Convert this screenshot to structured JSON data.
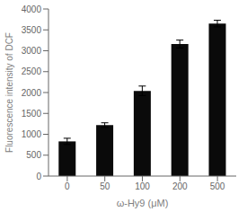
{
  "chart_data": {
    "type": "bar",
    "categories": [
      "0",
      "50",
      "100",
      "200",
      "500"
    ],
    "values": [
      830,
      1220,
      2040,
      3160,
      3650
    ],
    "errors": [
      75,
      55,
      115,
      95,
      80
    ],
    "color": "#0a0a0a",
    "xlabel": "ω-Hy9 (μM)",
    "ylabel": "Fluorescence  intensity  of DCF",
    "ylim": [
      0,
      4000
    ],
    "yticks": [
      0,
      500,
      1000,
      1500,
      2000,
      2500,
      3000,
      3500,
      4000
    ]
  }
}
